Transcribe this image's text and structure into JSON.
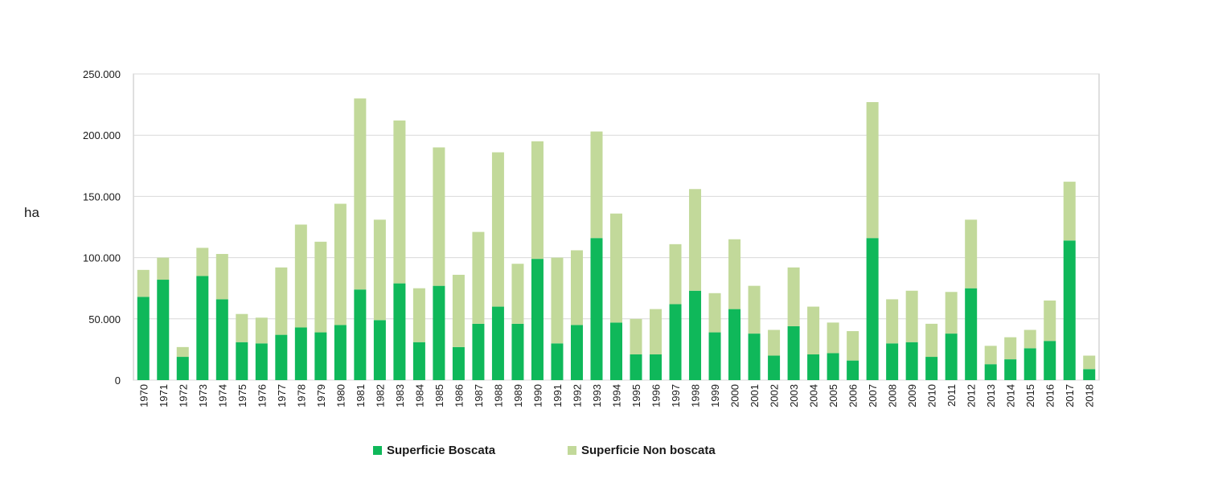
{
  "chart_data": {
    "type": "bar",
    "stacked": true,
    "title": "",
    "xlabel": "",
    "ylabel": "ha",
    "ylim": [
      0,
      250000
    ],
    "yticks": [
      0,
      50000,
      100000,
      150000,
      200000,
      250000
    ],
    "ytick_labels": [
      "0",
      "50.000",
      "100.000",
      "150.000",
      "200.000",
      "250.000"
    ],
    "grid": true,
    "legend_position": "bottom",
    "categories": [
      "1970",
      "1971",
      "1972",
      "1973",
      "1974",
      "1975",
      "1976",
      "1977",
      "1978",
      "1979",
      "1980",
      "1981",
      "1982",
      "1983",
      "1984",
      "1985",
      "1986",
      "1987",
      "1988",
      "1989",
      "1990",
      "1991",
      "1992",
      "1993",
      "1994",
      "1995",
      "1996",
      "1997",
      "1998",
      "1999",
      "2000",
      "2001",
      "2002",
      "2003",
      "2004",
      "2005",
      "2006",
      "2007",
      "2008",
      "2009",
      "2010",
      "2011",
      "2012",
      "2013",
      "2014",
      "2015",
      "2016",
      "2017",
      "2018"
    ],
    "series": [
      {
        "name": "Superficie Boscata",
        "color": "#0fb85a",
        "values": [
          68000,
          82000,
          19000,
          85000,
          66000,
          31000,
          30000,
          37000,
          43000,
          39000,
          45000,
          74000,
          49000,
          79000,
          31000,
          77000,
          27000,
          46000,
          60000,
          46000,
          99000,
          30000,
          45000,
          116000,
          47000,
          21000,
          21000,
          62000,
          73000,
          39000,
          58000,
          38000,
          20000,
          44000,
          21000,
          22000,
          16000,
          116000,
          30000,
          31000,
          19000,
          38000,
          75000,
          13000,
          17000,
          26000,
          32000,
          114000,
          9000
        ]
      },
      {
        "name": "Superficie Non boscata",
        "color": "#c2d99a",
        "values": [
          22000,
          18000,
          8000,
          23000,
          37000,
          23000,
          21000,
          55000,
          84000,
          74000,
          99000,
          156000,
          82000,
          133000,
          44000,
          113000,
          59000,
          75000,
          126000,
          49000,
          96000,
          70000,
          61000,
          87000,
          89000,
          29000,
          37000,
          49000,
          83000,
          32000,
          57000,
          39000,
          21000,
          48000,
          39000,
          25000,
          24000,
          111000,
          36000,
          42000,
          27000,
          34000,
          56000,
          15000,
          18000,
          15000,
          33000,
          48000,
          11000
        ]
      }
    ]
  }
}
